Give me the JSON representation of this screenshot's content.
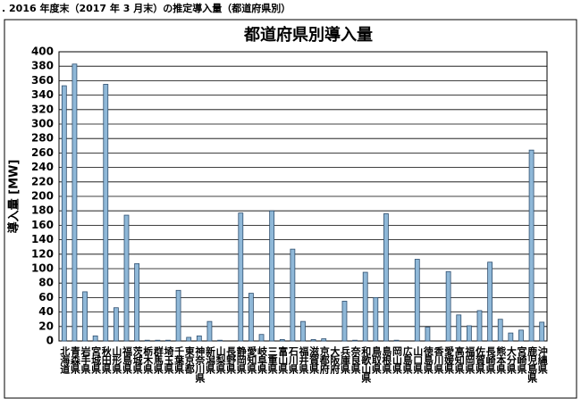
{
  "heading": ". 2016 年度末（2017 年 3 月末）の推定導入量（都道府県別）",
  "chart_data": {
    "type": "bar",
    "title": "都道府県別導入量",
    "y_label": "導入量 [MW]",
    "categories": [
      "北海道",
      "青森県",
      "岩手県",
      "宮城県",
      "秋田県",
      "山形県",
      "福島県",
      "茨城県",
      "栃木県",
      "群馬県",
      "埼玉県",
      "千葉県",
      "東京都",
      "神奈川県",
      "新潟県",
      "山梨県",
      "長野県",
      "静岡県",
      "愛知県",
      "岐阜県",
      "三重県",
      "富山県",
      "石川県",
      "福井県",
      "滋賀県",
      "京都府",
      "大阪府",
      "兵庫県",
      "奈良県",
      "和歌山県",
      "鳥取県",
      "島根県",
      "岡山県",
      "広島県",
      "山口県",
      "徳島県",
      "香川県",
      "愛媛県",
      "高知県",
      "福岡県",
      "佐賀県",
      "長崎県",
      "熊本県",
      "大分県",
      "宮崎県",
      "鹿児島県",
      "沖縄県"
    ],
    "values": [
      353,
      383,
      68,
      7,
      355,
      46,
      174,
      107,
      1,
      1,
      1,
      70,
      5,
      7,
      27,
      1,
      0,
      177,
      66,
      9,
      180,
      2,
      127,
      27,
      2,
      3,
      0,
      55,
      1,
      95,
      60,
      176,
      1,
      0,
      113,
      19,
      0,
      96,
      36,
      21,
      42,
      109,
      30,
      11,
      15,
      264,
      26
    ],
    "color": "#8fb8d8",
    "ylim": [
      0,
      400
    ],
    "yticks": [
      0,
      20,
      40,
      60,
      80,
      100,
      120,
      140,
      160,
      180,
      200,
      220,
      240,
      260,
      280,
      300,
      320,
      340,
      360,
      380,
      400
    ],
    "grid": true
  }
}
